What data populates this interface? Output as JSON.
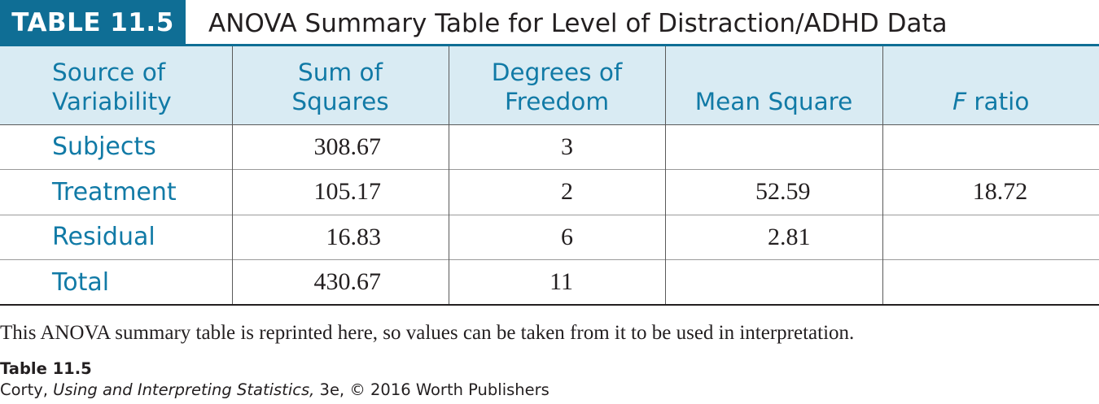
{
  "header": {
    "label": "TABLE 11.5",
    "title": "ANOVA Summary Table for Level of Distraction/ADHD Data"
  },
  "table": {
    "columns": [
      {
        "line1": "Source of",
        "line2": "Variability"
      },
      {
        "line1": "Sum of",
        "line2": "Squares"
      },
      {
        "line1": "Degrees of",
        "line2": "Freedom"
      },
      {
        "line1": "",
        "line2": "Mean Square"
      },
      {
        "line1": "",
        "f": "F",
        "rest": " ratio"
      }
    ],
    "rows": [
      {
        "source": "Subjects",
        "ss": "308.67",
        "df": "3",
        "ms": "",
        "f": ""
      },
      {
        "source": "Treatment",
        "ss": "105.17",
        "df": "2",
        "ms": "52.59",
        "f": "18.72"
      },
      {
        "source": "Residual",
        "ss": "16.83",
        "df": "6",
        "ms": "2.81",
        "f": ""
      },
      {
        "source": "Total",
        "ss": "430.67",
        "df": "11",
        "ms": "",
        "f": ""
      }
    ]
  },
  "note": "This ANOVA summary table is reprinted here, so values can be taken from it to be used in interpretation.",
  "credit": {
    "label": "Table 11.5",
    "author": "Corty,",
    "book": "Using and Interpreting Statistics,",
    "rest": "3e, © 2016 Worth Publishers"
  },
  "colors": {
    "accent": "#0f6e95",
    "header_text": "#117aa6",
    "header_bg": "#d9ebf3"
  }
}
